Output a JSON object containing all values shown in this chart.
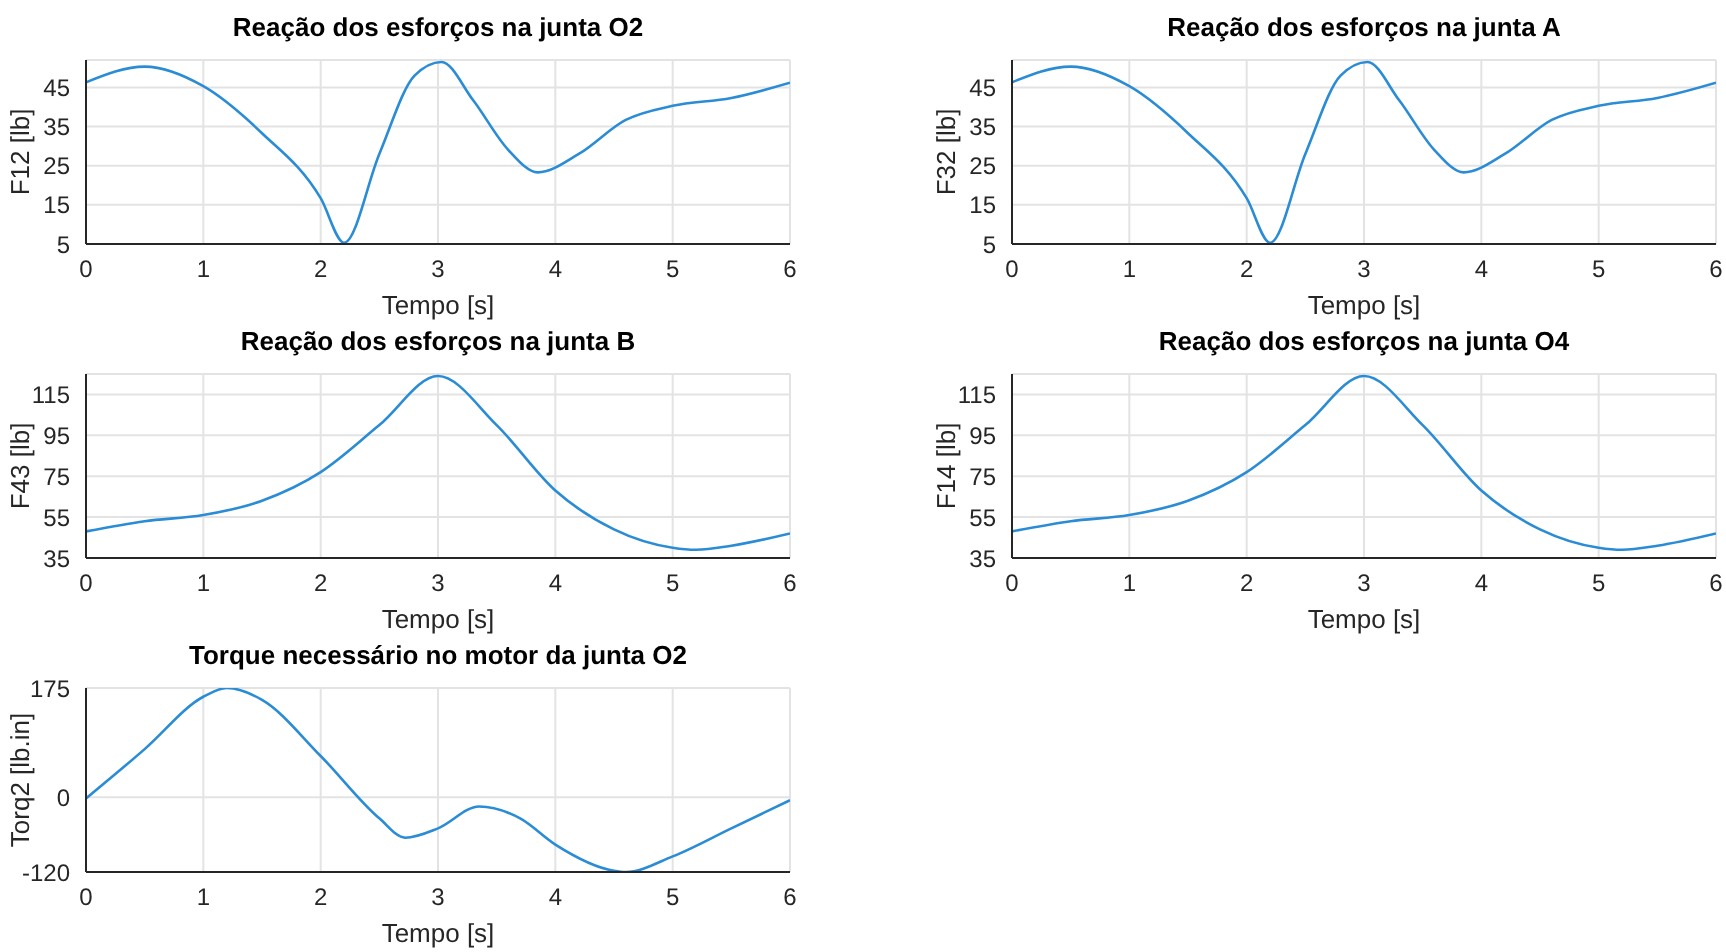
{
  "chart_data": [
    {
      "type": "line",
      "title": "Reação dos esforços na junta O2",
      "xlabel": "Tempo [s]",
      "ylabel": "F12 [lb]",
      "grid": true,
      "xlim": [
        0,
        6
      ],
      "xticks": [
        0,
        1,
        2,
        3,
        4,
        5,
        6
      ],
      "ylim": [
        5,
        52
      ],
      "yticks": [
        5,
        15,
        25,
        35,
        45
      ],
      "series": [
        {
          "color": "#2b8cd6",
          "x": [
            0,
            0.5,
            1,
            1.5,
            2,
            2.2,
            2.5,
            2.8,
            3.03,
            3.3,
            3.6,
            3.85,
            4.2,
            4.6,
            5,
            5.5,
            6
          ],
          "values": [
            46.3,
            50.3,
            45.3,
            33.3,
            16.7,
            5.3,
            28,
            48,
            51.5,
            41.7,
            29,
            23.3,
            28,
            36.7,
            40.3,
            42.3,
            46.2
          ]
        }
      ]
    },
    {
      "type": "line",
      "title": "Reação dos esforços na junta A",
      "xlabel": "Tempo [s]",
      "ylabel": "F32 [lb]",
      "grid": true,
      "xlim": [
        0,
        6
      ],
      "xticks": [
        0,
        1,
        2,
        3,
        4,
        5,
        6
      ],
      "ylim": [
        5,
        52
      ],
      "yticks": [
        5,
        15,
        25,
        35,
        45
      ],
      "series": [
        {
          "color": "#2b8cd6",
          "x": [
            0,
            0.5,
            1,
            1.5,
            2,
            2.2,
            2.5,
            2.8,
            3.03,
            3.3,
            3.6,
            3.85,
            4.2,
            4.6,
            5,
            5.5,
            6
          ],
          "values": [
            46.3,
            50.3,
            45.3,
            33.3,
            16.7,
            5.3,
            28,
            48,
            51.5,
            41.7,
            29,
            23.3,
            28,
            36.7,
            40.3,
            42.3,
            46.2
          ]
        }
      ]
    },
    {
      "type": "line",
      "title": "Reação dos esforços na junta B",
      "xlabel": "Tempo [s]",
      "ylabel": "F43 [lb]",
      "grid": true,
      "xlim": [
        0,
        6
      ],
      "xticks": [
        0,
        1,
        2,
        3,
        4,
        5,
        6
      ],
      "ylim": [
        35,
        125
      ],
      "yticks": [
        35,
        55,
        75,
        95,
        115
      ],
      "series": [
        {
          "color": "#2b8cd6",
          "x": [
            0,
            0.5,
            1,
            1.5,
            2,
            2.5,
            3,
            3.5,
            4,
            4.5,
            5,
            5.2,
            5.5,
            6
          ],
          "values": [
            48,
            53,
            56,
            63,
            77,
            100,
            124,
            100,
            68,
            49,
            40,
            39,
            41,
            47
          ]
        }
      ]
    },
    {
      "type": "line",
      "title": "Reação dos esforços na junta O4",
      "xlabel": "Tempo [s]",
      "ylabel": "F14 [lb]",
      "grid": true,
      "xlim": [
        0,
        6
      ],
      "xticks": [
        0,
        1,
        2,
        3,
        4,
        5,
        6
      ],
      "ylim": [
        35,
        125
      ],
      "yticks": [
        35,
        55,
        75,
        95,
        115
      ],
      "series": [
        {
          "color": "#2b8cd6",
          "x": [
            0,
            0.5,
            1,
            1.5,
            2,
            2.5,
            3,
            3.5,
            4,
            4.5,
            5,
            5.2,
            5.5,
            6
          ],
          "values": [
            48,
            53,
            56,
            63,
            77,
            100,
            124,
            100,
            68,
            49,
            40,
            39,
            41,
            47
          ]
        }
      ]
    },
    {
      "type": "line",
      "title": "Torque necessário no motor da junta O2",
      "xlabel": "Tempo [s]",
      "ylabel": "Torq2 [lb.in]",
      "grid": true,
      "xlim": [
        0,
        6
      ],
      "xticks": [
        0,
        1,
        2,
        3,
        4,
        5,
        6
      ],
      "ylim": [
        -120,
        175
      ],
      "yticks": [
        -120,
        0,
        175
      ],
      "series": [
        {
          "color": "#2b8cd6",
          "x": [
            0,
            0.5,
            1,
            1.2,
            1.5,
            2,
            2.5,
            2.72,
            3,
            3.35,
            3.7,
            4,
            4.5,
            4.6,
            5,
            5.5,
            6
          ],
          "values": [
            -2,
            77,
            161,
            175,
            156,
            66,
            -34,
            -65,
            -50,
            -15,
            -34,
            -76,
            -118,
            -120,
            -95,
            -50,
            -5
          ]
        }
      ]
    }
  ]
}
